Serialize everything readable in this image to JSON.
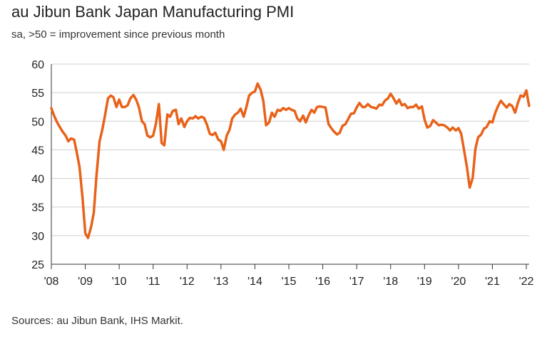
{
  "chart_data": {
    "type": "line",
    "title": "au Jibun Bank Japan Manufacturing PMI",
    "subtitle": "sa, >50 = improvement since previous month",
    "source": "Sources: au Jibun Bank, IHS Markit.",
    "xlabel": "",
    "ylabel": "",
    "ylim": [
      25,
      60
    ],
    "yticks": [
      25,
      30,
      35,
      40,
      45,
      50,
      55,
      60
    ],
    "xlim": [
      2008.0,
      2022.08
    ],
    "xtick_labels": [
      "'08",
      "'09",
      "'10",
      "'11",
      "'12",
      "'13",
      "'14",
      "'15",
      "'16",
      "'17",
      "'18",
      "'19",
      "'20",
      "'21",
      "'22"
    ],
    "grid": true,
    "line_color": "#e8621a",
    "series": [
      {
        "name": "Manufacturing PMI",
        "points": [
          [
            2008.0,
            52.3
          ],
          [
            2008.08,
            51.0
          ],
          [
            2008.17,
            49.8
          ],
          [
            2008.25,
            49.0
          ],
          [
            2008.33,
            48.2
          ],
          [
            2008.42,
            47.5
          ],
          [
            2008.5,
            46.5
          ],
          [
            2008.58,
            47.0
          ],
          [
            2008.67,
            46.8
          ],
          [
            2008.75,
            44.5
          ],
          [
            2008.83,
            42.0
          ],
          [
            2008.92,
            36.5
          ],
          [
            2009.0,
            30.4
          ],
          [
            2009.08,
            29.6
          ],
          [
            2009.17,
            31.5
          ],
          [
            2009.25,
            34.0
          ],
          [
            2009.33,
            40.5
          ],
          [
            2009.42,
            46.5
          ],
          [
            2009.5,
            48.5
          ],
          [
            2009.58,
            51.0
          ],
          [
            2009.67,
            54.0
          ],
          [
            2009.75,
            54.5
          ],
          [
            2009.83,
            54.2
          ],
          [
            2009.92,
            52.5
          ],
          [
            2010.0,
            53.8
          ],
          [
            2010.08,
            52.5
          ],
          [
            2010.17,
            52.5
          ],
          [
            2010.25,
            52.8
          ],
          [
            2010.33,
            54.0
          ],
          [
            2010.42,
            54.6
          ],
          [
            2010.5,
            53.8
          ],
          [
            2010.58,
            52.5
          ],
          [
            2010.67,
            50.0
          ],
          [
            2010.75,
            49.5
          ],
          [
            2010.83,
            47.5
          ],
          [
            2010.92,
            47.2
          ],
          [
            2011.0,
            47.5
          ],
          [
            2011.08,
            49.5
          ],
          [
            2011.17,
            53.0
          ],
          [
            2011.25,
            46.2
          ],
          [
            2011.33,
            45.8
          ],
          [
            2011.42,
            51.2
          ],
          [
            2011.5,
            50.8
          ],
          [
            2011.58,
            51.8
          ],
          [
            2011.67,
            52.0
          ],
          [
            2011.75,
            49.5
          ],
          [
            2011.83,
            50.5
          ],
          [
            2011.92,
            49.0
          ],
          [
            2012.0,
            50.0
          ],
          [
            2012.08,
            50.6
          ],
          [
            2012.17,
            50.5
          ],
          [
            2012.25,
            50.9
          ],
          [
            2012.33,
            50.5
          ],
          [
            2012.42,
            50.8
          ],
          [
            2012.5,
            50.6
          ],
          [
            2012.58,
            49.5
          ],
          [
            2012.67,
            47.8
          ],
          [
            2012.75,
            47.6
          ],
          [
            2012.83,
            48.0
          ],
          [
            2012.92,
            46.8
          ],
          [
            2013.0,
            46.5
          ],
          [
            2013.08,
            45.0
          ],
          [
            2013.17,
            47.5
          ],
          [
            2013.25,
            48.5
          ],
          [
            2013.33,
            50.5
          ],
          [
            2013.42,
            51.2
          ],
          [
            2013.5,
            51.5
          ],
          [
            2013.58,
            52.2
          ],
          [
            2013.67,
            50.8
          ],
          [
            2013.75,
            52.5
          ],
          [
            2013.83,
            54.5
          ],
          [
            2013.92,
            55.0
          ],
          [
            2014.0,
            55.2
          ],
          [
            2014.08,
            56.6
          ],
          [
            2014.17,
            55.5
          ],
          [
            2014.25,
            53.5
          ],
          [
            2014.33,
            49.3
          ],
          [
            2014.42,
            49.8
          ],
          [
            2014.5,
            51.5
          ],
          [
            2014.58,
            50.8
          ],
          [
            2014.67,
            52.0
          ],
          [
            2014.75,
            51.8
          ],
          [
            2014.83,
            52.3
          ],
          [
            2014.92,
            52.0
          ],
          [
            2015.0,
            52.3
          ],
          [
            2015.08,
            52.0
          ],
          [
            2015.17,
            51.8
          ],
          [
            2015.25,
            50.5
          ],
          [
            2015.33,
            50.0
          ],
          [
            2015.42,
            51.0
          ],
          [
            2015.5,
            49.8
          ],
          [
            2015.58,
            51.0
          ],
          [
            2015.67,
            52.0
          ],
          [
            2015.75,
            51.5
          ],
          [
            2015.83,
            52.5
          ],
          [
            2015.92,
            52.6
          ],
          [
            2016.0,
            52.5
          ],
          [
            2016.08,
            52.4
          ],
          [
            2016.17,
            49.5
          ],
          [
            2016.25,
            48.8
          ],
          [
            2016.33,
            48.2
          ],
          [
            2016.42,
            47.7
          ],
          [
            2016.5,
            48.0
          ],
          [
            2016.58,
            49.2
          ],
          [
            2016.67,
            49.5
          ],
          [
            2016.75,
            50.4
          ],
          [
            2016.83,
            51.3
          ],
          [
            2016.92,
            51.4
          ],
          [
            2017.0,
            52.4
          ],
          [
            2017.08,
            53.2
          ],
          [
            2017.17,
            52.5
          ],
          [
            2017.25,
            52.5
          ],
          [
            2017.33,
            53.0
          ],
          [
            2017.42,
            52.5
          ],
          [
            2017.5,
            52.4
          ],
          [
            2017.58,
            52.2
          ],
          [
            2017.67,
            52.9
          ],
          [
            2017.75,
            52.8
          ],
          [
            2017.83,
            53.6
          ],
          [
            2017.92,
            54.0
          ],
          [
            2018.0,
            54.8
          ],
          [
            2018.08,
            54.1
          ],
          [
            2018.17,
            53.1
          ],
          [
            2018.25,
            53.8
          ],
          [
            2018.33,
            52.8
          ],
          [
            2018.42,
            53.0
          ],
          [
            2018.5,
            52.3
          ],
          [
            2018.58,
            52.5
          ],
          [
            2018.67,
            52.5
          ],
          [
            2018.75,
            52.9
          ],
          [
            2018.83,
            52.2
          ],
          [
            2018.92,
            52.6
          ],
          [
            2019.0,
            50.3
          ],
          [
            2019.08,
            48.9
          ],
          [
            2019.17,
            49.2
          ],
          [
            2019.25,
            50.2
          ],
          [
            2019.33,
            49.8
          ],
          [
            2019.42,
            49.3
          ],
          [
            2019.5,
            49.4
          ],
          [
            2019.58,
            49.3
          ],
          [
            2019.67,
            48.9
          ],
          [
            2019.75,
            48.4
          ],
          [
            2019.83,
            48.9
          ],
          [
            2019.92,
            48.4
          ],
          [
            2020.0,
            48.8
          ],
          [
            2020.08,
            47.8
          ],
          [
            2020.17,
            44.8
          ],
          [
            2020.25,
            41.9
          ],
          [
            2020.33,
            38.4
          ],
          [
            2020.42,
            40.1
          ],
          [
            2020.5,
            45.2
          ],
          [
            2020.58,
            47.2
          ],
          [
            2020.67,
            47.7
          ],
          [
            2020.75,
            48.7
          ],
          [
            2020.83,
            49.0
          ],
          [
            2020.92,
            50.0
          ],
          [
            2021.0,
            49.8
          ],
          [
            2021.08,
            51.4
          ],
          [
            2021.17,
            52.7
          ],
          [
            2021.25,
            53.6
          ],
          [
            2021.33,
            53.0
          ],
          [
            2021.42,
            52.4
          ],
          [
            2021.5,
            53.0
          ],
          [
            2021.58,
            52.7
          ],
          [
            2021.67,
            51.5
          ],
          [
            2021.75,
            53.2
          ],
          [
            2021.83,
            54.5
          ],
          [
            2021.92,
            54.3
          ],
          [
            2022.0,
            55.4
          ],
          [
            2022.08,
            52.7
          ]
        ]
      }
    ]
  }
}
